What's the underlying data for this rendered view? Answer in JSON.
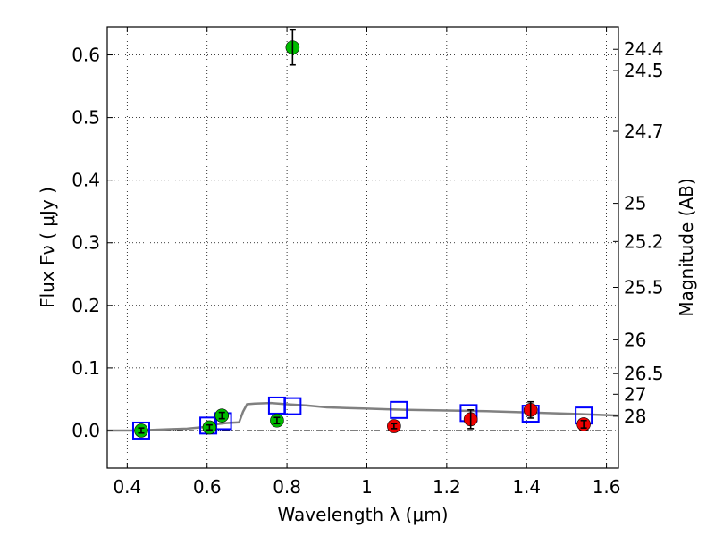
{
  "chart_data": {
    "type": "scatter",
    "xlabel": "Wavelength  λ (μm)",
    "ylabel": "Flux  Fν  ( μJy )",
    "ylabel_right": "Magnitude (AB)",
    "xlim": [
      0.35,
      1.63
    ],
    "ylim": [
      -0.06,
      0.645
    ],
    "grid": true,
    "x_ticks": [
      0.4,
      0.6,
      0.8,
      1.0,
      1.2,
      1.4,
      1.6
    ],
    "x_tick_labels": [
      "0.4",
      "0.6",
      "0.8",
      "1",
      "1.2",
      "1.4",
      "1.6"
    ],
    "y_ticks": [
      0.0,
      0.1,
      0.2,
      0.3,
      0.4,
      0.5,
      0.6
    ],
    "y_tick_labels": [
      "0.0",
      "0.1",
      "0.2",
      "0.3",
      "0.4",
      "0.5",
      "0.6"
    ],
    "magnitude_ticks": [
      {
        "label": "24.4",
        "flux": 0.609
      },
      {
        "label": "24.5",
        "flux": 0.575
      },
      {
        "label": "24.7",
        "flux": 0.478
      },
      {
        "label": "25",
        "flux": 0.363
      },
      {
        "label": "25.2",
        "flux": 0.302
      },
      {
        "label": "25.5",
        "flux": 0.229
      },
      {
        "label": "26",
        "flux": 0.145
      },
      {
        "label": "26.5",
        "flux": 0.091
      },
      {
        "label": "27",
        "flux": 0.058
      },
      {
        "label": "28",
        "flux": 0.023
      }
    ],
    "series": [
      {
        "name": "green_detections",
        "color": "#00bb00",
        "marker": "circle",
        "points": [
          {
            "x": 0.435,
            "y": 0.0,
            "err": 0.004
          },
          {
            "x": 0.606,
            "y": 0.005,
            "err": 0.004
          },
          {
            "x": 0.637,
            "y": 0.024,
            "err": 0.005
          },
          {
            "x": 0.775,
            "y": 0.016,
            "err": 0.005
          },
          {
            "x": 0.814,
            "y": 0.612,
            "err": 0.028
          }
        ]
      },
      {
        "name": "red_detections",
        "color": "#ee0000",
        "marker": "circle",
        "points": [
          {
            "x": 1.068,
            "y": 0.007,
            "err": 0.004
          },
          {
            "x": 1.26,
            "y": 0.018,
            "err": 0.015
          },
          {
            "x": 1.41,
            "y": 0.033,
            "err": 0.013
          },
          {
            "x": 1.543,
            "y": 0.01,
            "err": 0.006
          }
        ]
      },
      {
        "name": "model_photometry",
        "color": "#0000ff",
        "marker": "open_square",
        "points": [
          {
            "x": 0.435,
            "y": 0.0
          },
          {
            "x": 0.603,
            "y": 0.008
          },
          {
            "x": 0.64,
            "y": 0.015
          },
          {
            "x": 0.775,
            "y": 0.04
          },
          {
            "x": 0.814,
            "y": 0.039
          },
          {
            "x": 1.08,
            "y": 0.033
          },
          {
            "x": 1.255,
            "y": 0.028
          },
          {
            "x": 1.41,
            "y": 0.027
          },
          {
            "x": 1.543,
            "y": 0.024
          }
        ]
      },
      {
        "name": "model_spectrum",
        "color": "#808080",
        "type": "line",
        "x": [
          0.35,
          0.42,
          0.5,
          0.55,
          0.6,
          0.62,
          0.65,
          0.68,
          0.69,
          0.7,
          0.72,
          0.76,
          0.8,
          0.85,
          0.9,
          0.95,
          1.0,
          1.05,
          1.1,
          1.2,
          1.3,
          1.4,
          1.5,
          1.63
        ],
        "y": [
          0.0,
          0.0,
          0.002,
          0.003,
          0.006,
          0.01,
          0.012,
          0.013,
          0.03,
          0.042,
          0.043,
          0.044,
          0.042,
          0.04,
          0.037,
          0.036,
          0.035,
          0.034,
          0.033,
          0.032,
          0.031,
          0.029,
          0.027,
          0.024
        ]
      }
    ]
  }
}
